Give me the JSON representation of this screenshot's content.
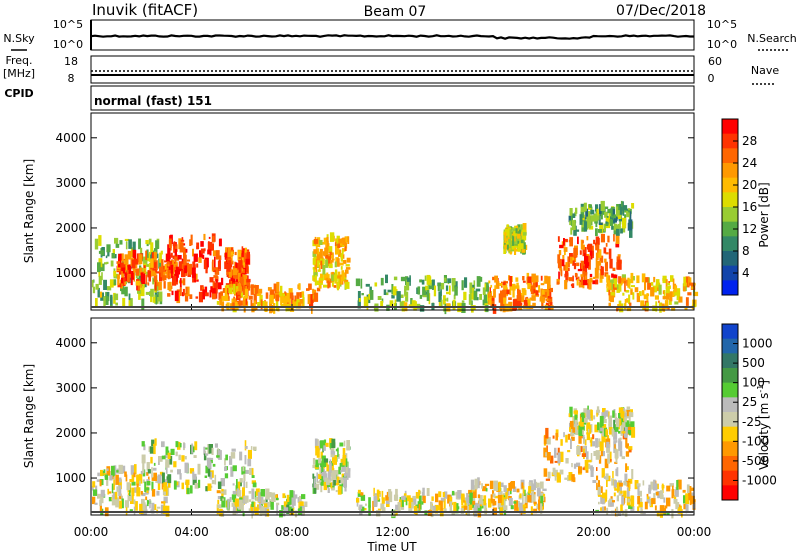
{
  "header": {
    "station": "Inuvik (fitACF)",
    "beam": "Beam 07",
    "date": "07/Dec/2018"
  },
  "noise_panel": {
    "left_label": "N.Sky",
    "right_label": "N.Search",
    "left_ticks": [
      "10^5",
      "10^0"
    ],
    "right_ticks": [
      "10^5",
      "10^0"
    ]
  },
  "freq_panel": {
    "left_label_line1": "Freq.",
    "left_label_line2": "[MHz]",
    "right_label": "Nave",
    "left_ticks": [
      "18",
      "8"
    ],
    "right_ticks": [
      "60",
      "0"
    ]
  },
  "cpid": {
    "label": "CPID",
    "text": "normal (fast) 151"
  },
  "axes": {
    "ylabel": "Slant Range [km]",
    "xlabel": "Time UT",
    "yticks": [
      "4000",
      "3000",
      "2000",
      "1000"
    ],
    "xticks": [
      "00:00",
      "04:00",
      "08:00",
      "12:00",
      "16:00",
      "20:00",
      "00:00"
    ]
  },
  "colorbars": {
    "power": {
      "label": "Power [dB]",
      "ticks": [
        "28",
        "24",
        "20",
        "16",
        "12",
        "8",
        "4"
      ],
      "colors": [
        "#ff0000",
        "#ff3300",
        "#ff6600",
        "#ff9900",
        "#ffbb00",
        "#dddd00",
        "#99cc33",
        "#55aa44",
        "#338866",
        "#226677",
        "#1144aa",
        "#0022ee"
      ]
    },
    "velocity": {
      "label": "Velocity [m s",
      "label_sup": "-1",
      "label_end": "]",
      "ticks": [
        "1000",
        "500",
        "100",
        "25",
        "-25",
        "-100",
        "-500",
        "-1000"
      ],
      "colors": [
        "#1144cc",
        "#2266aa",
        "#337766",
        "#449944",
        "#55cc33",
        "#bbbbbb",
        "#ccccaa",
        "#ffcc00",
        "#ff9900",
        "#ff6600",
        "#ff3300",
        "#ff0000"
      ]
    }
  },
  "chart_data": [
    {
      "type": "heatmap",
      "title": "Power [dB]",
      "xlabel": "Time UT",
      "ylabel": "Slant Range [km]",
      "xlim": [
        0,
        24
      ],
      "ylim": [
        180,
        4550
      ],
      "clim": [
        0,
        32
      ],
      "regions": [
        {
          "t0": 0.0,
          "t1": 2.8,
          "r0": 300,
          "r1": 1750,
          "value": 14
        },
        {
          "t0": 1.0,
          "t1": 3.4,
          "r0": 700,
          "r1": 1400,
          "value": 26
        },
        {
          "t0": 3.0,
          "t1": 5.2,
          "r0": 450,
          "r1": 1800,
          "value": 28
        },
        {
          "t0": 5.3,
          "t1": 6.2,
          "r0": 600,
          "r1": 1500,
          "value": 26
        },
        {
          "t0": 5.0,
          "t1": 9.0,
          "r0": 200,
          "r1": 700,
          "value": 22
        },
        {
          "t0": 8.8,
          "t1": 10.2,
          "r0": 700,
          "r1": 1800,
          "value": 20
        },
        {
          "t0": 10.5,
          "t1": 16.0,
          "r0": 200,
          "r1": 900,
          "value": 14
        },
        {
          "t0": 15.8,
          "t1": 18.3,
          "r0": 200,
          "r1": 900,
          "value": 24
        },
        {
          "t0": 16.4,
          "t1": 17.2,
          "r0": 1500,
          "r1": 2000,
          "value": 16
        },
        {
          "t0": 18.5,
          "t1": 21.0,
          "r0": 700,
          "r1": 1800,
          "value": 26
        },
        {
          "t0": 19.0,
          "t1": 21.5,
          "r0": 1900,
          "r1": 2500,
          "value": 12
        },
        {
          "t0": 20.5,
          "t1": 24.0,
          "r0": 200,
          "r1": 900,
          "value": 20
        }
      ]
    },
    {
      "type": "heatmap",
      "title": "Velocity [m s-1]",
      "xlabel": "Time UT",
      "ylabel": "Slant Range [km]",
      "xlim": [
        0,
        24
      ],
      "ylim": [
        180,
        4550
      ],
      "clim": [
        -1000,
        1000
      ],
      "regions": [
        {
          "t0": 0.0,
          "t1": 3.0,
          "r0": 250,
          "r1": 1200,
          "value": -100
        },
        {
          "t0": 2.0,
          "t1": 6.5,
          "r0": 700,
          "r1": 1800,
          "value": 60
        },
        {
          "t0": 5.0,
          "t1": 8.5,
          "r0": 200,
          "r1": 700,
          "value": 0
        },
        {
          "t0": 8.8,
          "t1": 10.2,
          "r0": 700,
          "r1": 1800,
          "value": 80
        },
        {
          "t0": 10.5,
          "t1": 15.5,
          "r0": 200,
          "r1": 700,
          "value": -50
        },
        {
          "t0": 15.0,
          "t1": 18.0,
          "r0": 250,
          "r1": 900,
          "value": -150
        },
        {
          "t0": 18.0,
          "t1": 21.5,
          "r0": 900,
          "r1": 2000,
          "value": -200
        },
        {
          "t0": 19.0,
          "t1": 21.5,
          "r0": 2000,
          "r1": 2500,
          "value": 0
        },
        {
          "t0": 20.0,
          "t1": 24.0,
          "r0": 200,
          "r1": 900,
          "value": -150
        }
      ]
    }
  ]
}
